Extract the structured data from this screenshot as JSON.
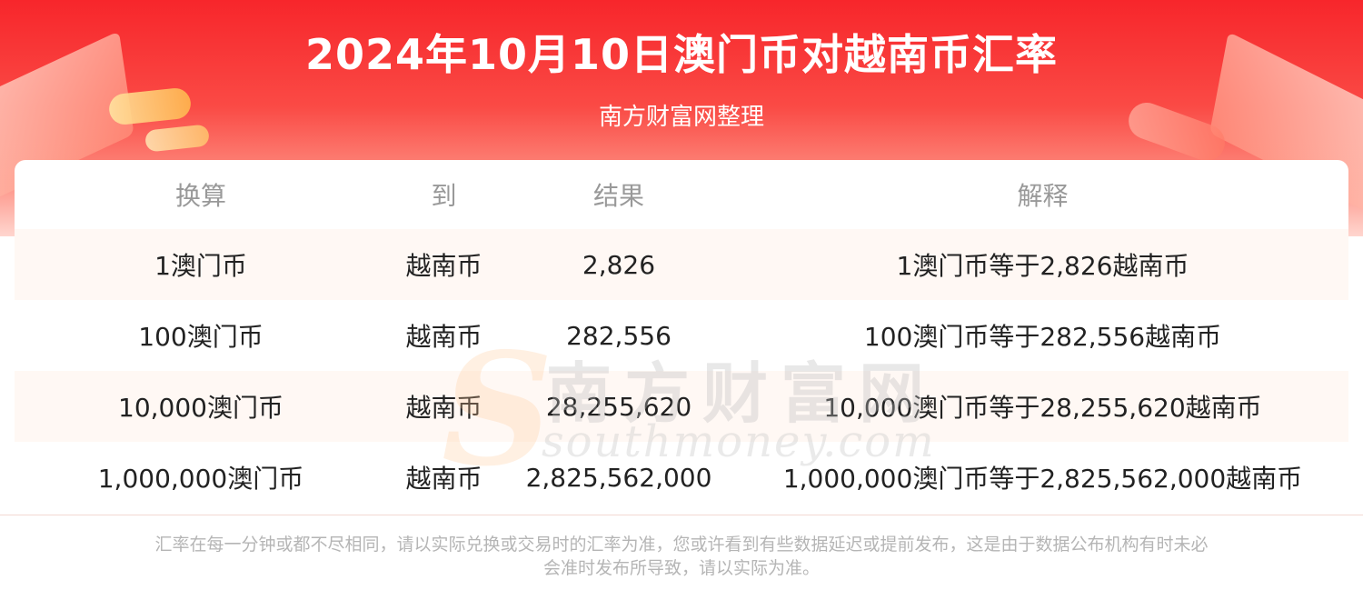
{
  "header": {
    "title": "2024年10月10日澳门币对越南币汇率",
    "subtitle": "南方财富网整理"
  },
  "watermark": {
    "cn": "南方财富网",
    "en": "southmoney.com"
  },
  "table": {
    "headers": [
      "换算",
      "到",
      "结果",
      "解释"
    ],
    "rows": [
      {
        "from": "1澳门币",
        "to": "越南币",
        "result": "2,826",
        "explain": "1澳门币等于2,826越南币"
      },
      {
        "from": "100澳门币",
        "to": "越南币",
        "result": "282,556",
        "explain": "100澳门币等于282,556越南币"
      },
      {
        "from": "10,000澳门币",
        "to": "越南币",
        "result": "28,255,620",
        "explain": "10,000澳门币等于28,255,620越南币"
      },
      {
        "from": "1,000,000澳门币",
        "to": "越南币",
        "result": "2,825,562,000",
        "explain": "1,000,000澳门币等于2,825,562,000越南币"
      }
    ]
  },
  "footnote": {
    "line1": "汇率在每一分钟或都不尽相同，请以实际兑换或交易时的汇率为准，您或许看到有些数据延迟或提前发布，这是由于数据公布机构有时未必",
    "line2": "会准时发布所导致，请以实际为准。"
  },
  "colors": {
    "banner_top": "#f7262b",
    "row_stripe": "#fff8f4",
    "header_text": "#999999",
    "footnote_text": "#b5b5b5"
  }
}
